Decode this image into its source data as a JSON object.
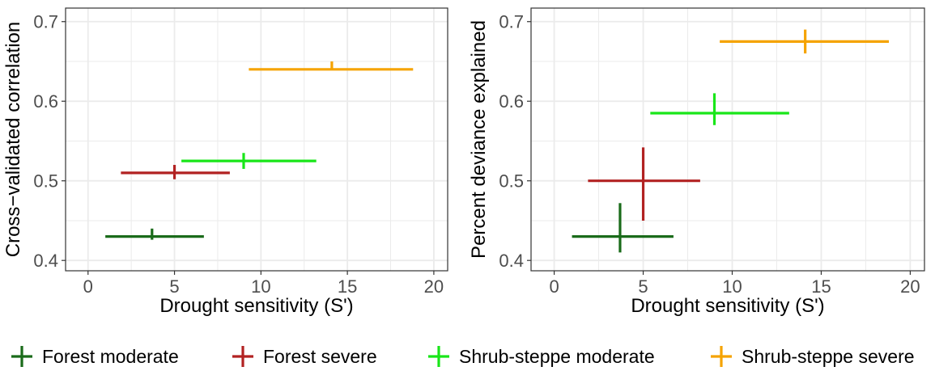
{
  "chart_data": [
    {
      "type": "errorbar",
      "xlabel": "Drought sensitivity (S')",
      "ylabel": "Cross−validated correlation",
      "xlim": [
        -1.3,
        20.8
      ],
      "ylim": [
        0.387,
        0.717
      ],
      "xticks": [
        "0",
        "5",
        "10",
        "15",
        "20"
      ],
      "yticks": [
        "0.4",
        "0.5",
        "0.6",
        "0.7"
      ],
      "xtick_values": [
        0,
        5,
        10,
        15,
        20
      ],
      "ytick_values": [
        0.4,
        0.5,
        0.6,
        0.7
      ],
      "grid": true,
      "series": [
        {
          "name": "Forest moderate",
          "x": 3.7,
          "x_low": 1.0,
          "x_high": 6.7,
          "y": 0.43,
          "y_low": 0.426,
          "y_high": 0.44
        },
        {
          "name": "Forest severe",
          "x": 5.0,
          "x_low": 1.9,
          "x_high": 8.2,
          "y": 0.51,
          "y_low": 0.502,
          "y_high": 0.52
        },
        {
          "name": "Shrub-steppe moderate",
          "x": 9.0,
          "x_low": 5.4,
          "x_high": 13.2,
          "y": 0.525,
          "y_low": 0.515,
          "y_high": 0.535
        },
        {
          "name": "Shrub-steppe severe",
          "x": 14.1,
          "x_low": 9.3,
          "x_high": 18.8,
          "y": 0.64,
          "y_low": 0.64,
          "y_high": 0.65
        }
      ]
    },
    {
      "type": "errorbar",
      "xlabel": "Drought sensitivity (S')",
      "ylabel": "Percent deviance explained",
      "xlim": [
        -1.3,
        20.8
      ],
      "ylim": [
        0.387,
        0.717
      ],
      "xticks": [
        "0",
        "5",
        "10",
        "15",
        "20"
      ],
      "yticks": [
        "0.4",
        "0.5",
        "0.6",
        "0.7"
      ],
      "xtick_values": [
        0,
        5,
        10,
        15,
        20
      ],
      "ytick_values": [
        0.4,
        0.5,
        0.6,
        0.7
      ],
      "grid": true,
      "series": [
        {
          "name": "Forest moderate",
          "x": 3.7,
          "x_low": 1.0,
          "x_high": 6.7,
          "y": 0.43,
          "y_low": 0.41,
          "y_high": 0.472
        },
        {
          "name": "Forest severe",
          "x": 5.0,
          "x_low": 1.9,
          "x_high": 8.2,
          "y": 0.5,
          "y_low": 0.45,
          "y_high": 0.542
        },
        {
          "name": "Shrub-steppe moderate",
          "x": 9.0,
          "x_low": 5.4,
          "x_high": 13.2,
          "y": 0.585,
          "y_low": 0.57,
          "y_high": 0.61
        },
        {
          "name": "Shrub-steppe severe",
          "x": 14.1,
          "x_low": 9.3,
          "x_high": 18.8,
          "y": 0.675,
          "y_low": 0.66,
          "y_high": 0.69
        }
      ]
    }
  ],
  "legend": {
    "placement": "bottom",
    "items": [
      {
        "label": "Forest moderate",
        "color": "#1a6b1a"
      },
      {
        "label": "Forest severe",
        "color": "#b22222"
      },
      {
        "label": "Shrub-steppe moderate",
        "color": "#19e619"
      },
      {
        "label": "Shrub-steppe severe",
        "color": "#f5a300"
      }
    ]
  },
  "colors": {
    "Forest moderate": "#1a6b1a",
    "Forest severe": "#b22222",
    "Shrub-steppe moderate": "#19e619",
    "Shrub-steppe severe": "#f5a300",
    "gridline": "#ebebeb",
    "panel_border": "#333333",
    "tick_text": "#4d4d4d",
    "label_text": "#000000"
  }
}
